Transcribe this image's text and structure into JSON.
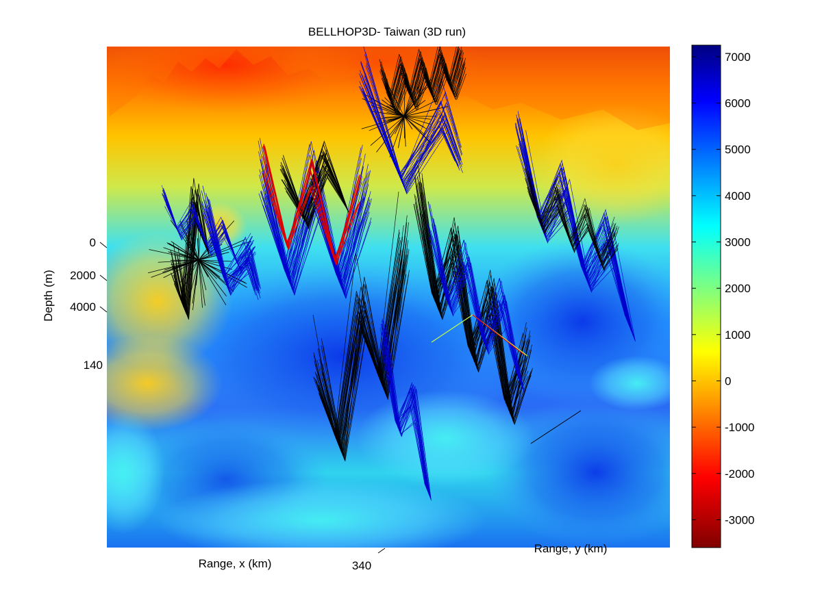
{
  "chart_data": {
    "type": "surface3d",
    "title": "BELLHOP3D- Taiwan (3D run)",
    "xlabel": "Range, x (km)",
    "ylabel": "Range, y (km)",
    "zlabel": "Depth (m)",
    "z_ticks": [
      "0",
      "2000",
      "4000"
    ],
    "x_ticks": [
      "340"
    ],
    "side_tick": "140",
    "colorbar": {
      "ticks": [
        7000,
        6000,
        5000,
        4000,
        3000,
        2000,
        1000,
        0,
        -1000,
        -2000,
        -3000
      ],
      "range": [
        -3600,
        7250
      ]
    },
    "ray_fans": [
      {
        "name": "",
        "color": "#000000"
      },
      {
        "name": "",
        "color": "#0000cc"
      },
      {
        "name": "",
        "color": "#dd0000"
      }
    ]
  }
}
